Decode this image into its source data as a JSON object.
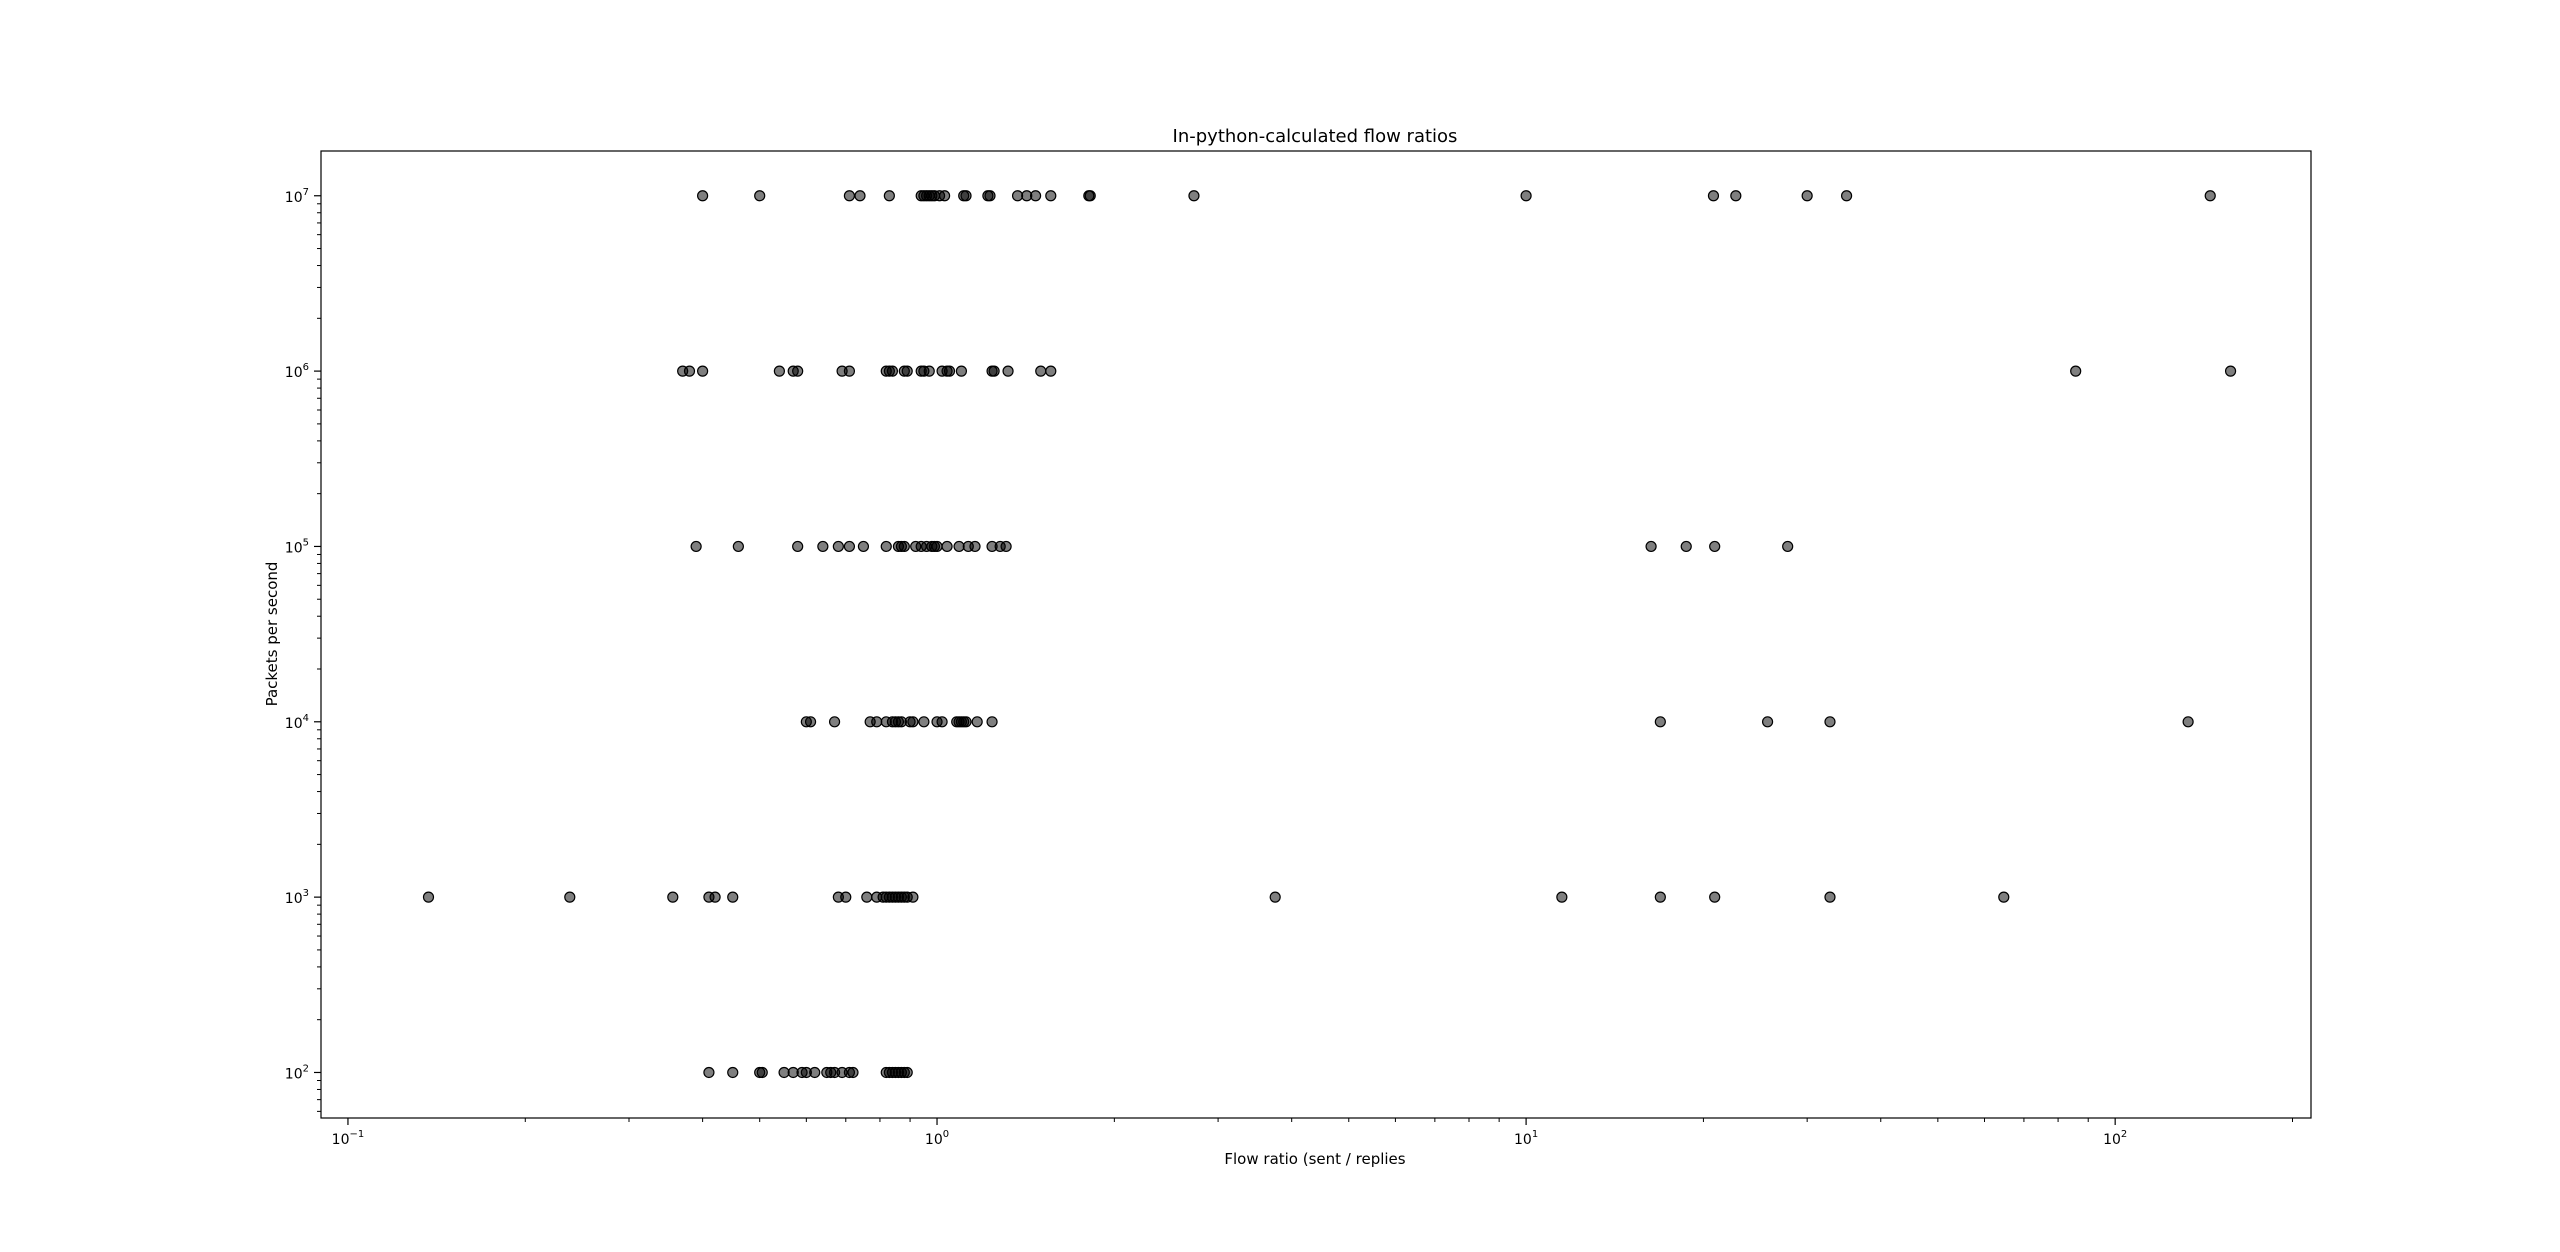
{
  "chart_data": {
    "type": "scatter",
    "title": "In-python-calculated flow ratios",
    "xlabel": "Flow ratio (sent / replies",
    "ylabel": "Packets per second",
    "x_scale": "log",
    "y_scale": "log",
    "xlim": [
      0.09,
      215
    ],
    "ylim": [
      55,
      18000000
    ],
    "grid": false,
    "legend": "none",
    "point_color": "#000000",
    "point_opacity": 0.5,
    "x_ticks": [
      {
        "base": "10",
        "exp": "−1",
        "value": 0.1
      },
      {
        "base": "10",
        "exp": "0",
        "value": 1
      },
      {
        "base": "10",
        "exp": "1",
        "value": 10
      },
      {
        "base": "10",
        "exp": "2",
        "value": 100
      }
    ],
    "y_ticks": [
      {
        "base": "10",
        "exp": "2",
        "value": 100
      },
      {
        "base": "10",
        "exp": "3",
        "value": 1000
      },
      {
        "base": "10",
        "exp": "4",
        "value": 10000
      },
      {
        "base": "10",
        "exp": "5",
        "value": 100000
      },
      {
        "base": "10",
        "exp": "6",
        "value": 1000000
      },
      {
        "base": "10",
        "exp": "7",
        "value": 10000000
      }
    ],
    "series": [
      {
        "y": 10000000,
        "x": [
          0.4,
          0.5,
          0.71,
          0.74,
          0.83,
          0.94,
          0.95,
          0.96,
          0.97,
          0.98,
          0.99,
          1.01,
          1.03,
          1.11,
          1.12,
          1.22,
          1.23,
          1.37,
          1.42,
          1.47,
          1.56,
          1.81,
          1.82,
          2.73,
          10.0,
          20.8,
          22.7,
          30.0,
          35.0,
          145
        ]
      },
      {
        "y": 1000000,
        "x": [
          0.37,
          0.38,
          0.4,
          0.54,
          0.57,
          0.58,
          0.69,
          0.71,
          0.82,
          0.83,
          0.84,
          0.88,
          0.89,
          0.94,
          0.95,
          0.97,
          1.02,
          1.04,
          1.05,
          1.1,
          1.24,
          1.25,
          1.32,
          1.5,
          1.56,
          85.7,
          157
        ]
      },
      {
        "y": 100000,
        "x": [
          0.39,
          0.46,
          0.58,
          0.64,
          0.68,
          0.71,
          0.75,
          0.82,
          0.86,
          0.87,
          0.88,
          0.92,
          0.94,
          0.96,
          0.98,
          0.99,
          1.0,
          1.04,
          1.09,
          1.13,
          1.16,
          1.24,
          1.28,
          1.31,
          16.3,
          18.7,
          20.9,
          27.8
        ]
      },
      {
        "y": 10000,
        "x": [
          0.6,
          0.61,
          0.67,
          0.77,
          0.79,
          0.82,
          0.84,
          0.85,
          0.86,
          0.87,
          0.9,
          0.91,
          0.95,
          1.0,
          1.02,
          1.08,
          1.09,
          1.1,
          1.11,
          1.12,
          1.17,
          1.24,
          16.9,
          25.7,
          32.8,
          133
        ]
      },
      {
        "y": 1000,
        "x": [
          0.137,
          0.238,
          0.356,
          0.41,
          0.42,
          0.45,
          0.68,
          0.7,
          0.76,
          0.79,
          0.81,
          0.82,
          0.83,
          0.84,
          0.85,
          0.86,
          0.87,
          0.88,
          0.89,
          0.91,
          3.75,
          11.5,
          16.9,
          20.9,
          32.8,
          64.7
        ]
      },
      {
        "y": 100,
        "x": [
          0.41,
          0.45,
          0.5,
          0.505,
          0.55,
          0.57,
          0.59,
          0.6,
          0.62,
          0.65,
          0.66,
          0.67,
          0.69,
          0.71,
          0.72,
          0.82,
          0.83,
          0.84,
          0.85,
          0.86,
          0.87,
          0.88,
          0.89
        ]
      }
    ]
  }
}
